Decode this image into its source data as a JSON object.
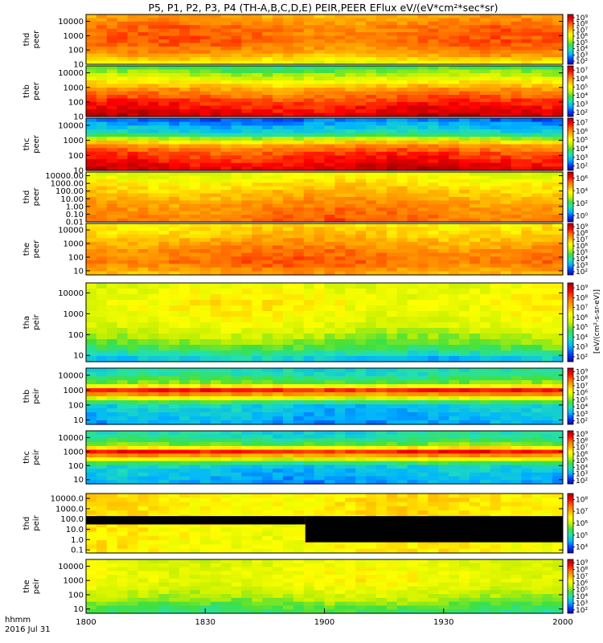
{
  "title": "P5, P1, P2, P3, P4 (TH-A,B,C,D,E) PEIR,PEER EFlux eV/(eV*cm²*sec*sr)",
  "colorbar_label": "[eV/(cm²-s-sr-eV)]",
  "time_axis": {
    "ticks": [
      "1800",
      "1830",
      "1900",
      "1930",
      "2000"
    ],
    "label_format": "hhmm",
    "date": "2016 Jul 31"
  },
  "colors": {
    "scale": [
      "#1a00a8",
      "#0040ff",
      "#00b4ff",
      "#22e0b0",
      "#40e040",
      "#c8f000",
      "#ffff00",
      "#ffb000",
      "#ff6a00",
      "#ff0000",
      "#a00000"
    ],
    "fill": "#000000"
  },
  "chart_data": [
    {
      "type": "heatmap",
      "panel": "thd-peer-1",
      "ylabel": [
        "thd",
        "peer"
      ],
      "yticks": [
        "10",
        "100",
        "1000",
        "10000"
      ],
      "ylim": [
        10,
        30000
      ],
      "yscale": "log",
      "cbar_ticks": [
        "10²",
        "10³",
        "10⁴",
        "10⁵",
        "10⁶",
        "10⁷",
        "10⁸",
        "10⁹"
      ],
      "profile": [
        [
          0.0,
          0.55
        ],
        [
          0.2,
          0.72
        ],
        [
          0.45,
          0.8
        ],
        [
          0.75,
          0.78
        ],
        [
          1.0,
          0.7
        ]
      ]
    },
    {
      "type": "heatmap",
      "panel": "thb-peer",
      "ylabel": [
        "thb",
        "peer"
      ],
      "yticks": [
        "10",
        "100",
        "1000",
        "10000"
      ],
      "ylim": [
        10,
        30000
      ],
      "yscale": "log",
      "cbar_ticks": [
        "10²",
        "10³",
        "10⁴",
        "10⁵",
        "10⁶",
        "10⁷"
      ],
      "profile": [
        [
          0.0,
          0.95
        ],
        [
          0.3,
          0.85
        ],
        [
          0.55,
          0.72
        ],
        [
          0.75,
          0.55
        ],
        [
          1.0,
          0.35
        ]
      ]
    },
    {
      "type": "heatmap",
      "panel": "thc-peer",
      "ylabel": [
        "thc",
        "peer"
      ],
      "yticks": [
        "10",
        "100",
        "1000",
        "10000"
      ],
      "ylim": [
        10,
        30000
      ],
      "yscale": "log",
      "cbar_ticks": [
        "10²",
        "10³",
        "10⁴",
        "10⁵",
        "10⁶",
        "10⁷"
      ],
      "profile": [
        [
          0.0,
          0.95
        ],
        [
          0.3,
          0.85
        ],
        [
          0.5,
          0.72
        ],
        [
          0.7,
          0.3
        ],
        [
          1.0,
          0.12
        ]
      ]
    },
    {
      "type": "heatmap",
      "panel": "thd-peer-2",
      "ylabel": [
        "thd",
        "peer"
      ],
      "yticks": [
        "0.01",
        "0.10",
        "1.00",
        "10.00",
        "100.00",
        "1000.00",
        "10000.00"
      ],
      "ylim": [
        0.01,
        30000
      ],
      "yscale": "log",
      "cbar_ticks": [
        "10⁰",
        "10²",
        "10⁴",
        "10⁶"
      ],
      "profile": [
        [
          0.0,
          0.8
        ],
        [
          0.3,
          0.75
        ],
        [
          0.6,
          0.68
        ],
        [
          0.8,
          0.62
        ],
        [
          1.0,
          0.55
        ]
      ]
    },
    {
      "type": "heatmap",
      "panel": "the-peer",
      "ylabel": [
        "the",
        "peer"
      ],
      "yticks": [
        "10",
        "100",
        "1000",
        "10000"
      ],
      "ylim": [
        5,
        30000
      ],
      "yscale": "log",
      "cbar_ticks": [
        "10²",
        "10³",
        "10⁴",
        "10⁵",
        "10⁶",
        "10⁷",
        "10⁸",
        "10⁹"
      ],
      "profile": [
        [
          0.0,
          0.7
        ],
        [
          0.25,
          0.8
        ],
        [
          0.5,
          0.76
        ],
        [
          0.75,
          0.68
        ],
        [
          1.0,
          0.62
        ]
      ]
    },
    {
      "type": "heatmap",
      "panel": "tha-peir",
      "ylabel": [
        "tha",
        "peir"
      ],
      "yticks": [
        "10",
        "100",
        "1000",
        "10000"
      ],
      "ylim": [
        5,
        30000
      ],
      "yscale": "log",
      "cbar_ticks": [
        "10²",
        "10³",
        "10⁴",
        "10⁵",
        "10⁶",
        "10⁷",
        "10⁸",
        "10⁹"
      ],
      "profile": [
        [
          0.0,
          0.2
        ],
        [
          0.2,
          0.42
        ],
        [
          0.45,
          0.55
        ],
        [
          0.75,
          0.6
        ],
        [
          1.0,
          0.55
        ]
      ]
    },
    {
      "type": "heatmap",
      "panel": "thb-peir",
      "ylabel": [
        "thb",
        "peir"
      ],
      "yticks": [
        "10",
        "100",
        "1000",
        "10000"
      ],
      "ylim": [
        5,
        30000
      ],
      "yscale": "log",
      "cbar_ticks": [
        "10²",
        "10³",
        "10⁴",
        "10⁵",
        "10⁶",
        "10⁷",
        "10⁸",
        "10⁹"
      ],
      "profile": [
        [
          0.0,
          0.18
        ],
        [
          0.35,
          0.25
        ],
        [
          0.6,
          0.9
        ],
        [
          0.72,
          0.45
        ],
        [
          0.88,
          0.3
        ],
        [
          1.0,
          0.28
        ]
      ]
    },
    {
      "type": "heatmap",
      "panel": "thc-peir",
      "ylabel": [
        "thc",
        "peir"
      ],
      "yticks": [
        "10",
        "100",
        "1000",
        "10000"
      ],
      "ylim": [
        5,
        30000
      ],
      "yscale": "log",
      "cbar_ticks": [
        "10²",
        "10³",
        "10⁴",
        "10⁵",
        "10⁶",
        "10⁷",
        "10⁸",
        "10⁹"
      ],
      "profile": [
        [
          0.0,
          0.18
        ],
        [
          0.35,
          0.25
        ],
        [
          0.6,
          0.9
        ],
        [
          0.72,
          0.45
        ],
        [
          0.88,
          0.3
        ],
        [
          1.0,
          0.28
        ]
      ]
    },
    {
      "type": "heatmap",
      "panel": "thd-peir",
      "ylabel": [
        "thd",
        "peir"
      ],
      "yticks": [
        "0.1",
        "1.0",
        "10.0",
        "100.0",
        "1000.0",
        "10000.0"
      ],
      "ylim": [
        0.05,
        30000
      ],
      "yscale": "log",
      "cbar_ticks": [
        "10⁴",
        "10⁵",
        "10⁶",
        "10⁷",
        "10⁸"
      ],
      "profile": [
        [
          0.0,
          0.6
        ],
        [
          0.35,
          0.6
        ],
        [
          0.6,
          0.62
        ],
        [
          1.0,
          0.62
        ]
      ]
    },
    {
      "type": "heatmap",
      "panel": "the-peir",
      "ylabel": [
        "the",
        "peir"
      ],
      "yticks": [
        "10",
        "100",
        "1000",
        "10000"
      ],
      "ylim": [
        5,
        30000
      ],
      "yscale": "log",
      "cbar_ticks": [
        "10²",
        "10³",
        "10⁴",
        "10⁵",
        "10⁶",
        "10⁷",
        "10⁸",
        "10⁹"
      ],
      "profile": [
        [
          0.0,
          0.35
        ],
        [
          0.3,
          0.5
        ],
        [
          0.6,
          0.58
        ],
        [
          1.0,
          0.55
        ]
      ]
    }
  ]
}
